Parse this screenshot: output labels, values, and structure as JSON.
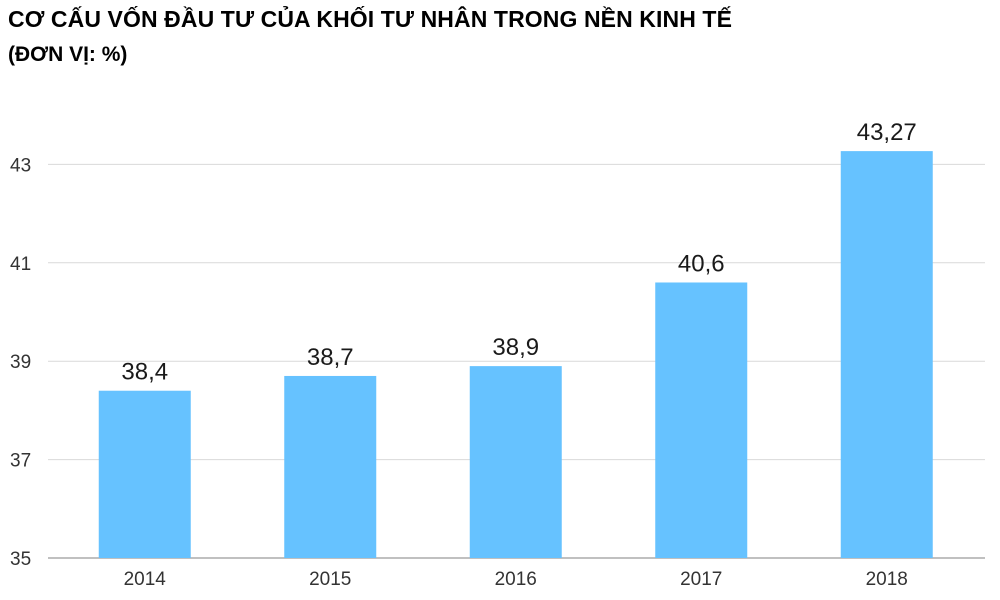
{
  "chart_data": {
    "type": "bar",
    "title": "CƠ CẤU VỐN ĐẦU TƯ CỦA KHỐI TƯ NHÂN TRONG NỀN KINH TẾ",
    "subtitle": "(ĐƠN VỊ: %)",
    "categories": [
      "2014",
      "2015",
      "2016",
      "2017",
      "2018"
    ],
    "values": [
      38.4,
      38.7,
      38.9,
      40.6,
      43.27
    ],
    "data_labels": [
      "38,4",
      "38,7",
      "38,9",
      "40,6",
      "43,27"
    ],
    "ylim": [
      35,
      44
    ],
    "yticks": [
      35,
      37,
      39,
      41,
      43
    ],
    "ytick_labels": [
      "35",
      "37",
      "39",
      "41",
      "43"
    ],
    "xlabel": "",
    "ylabel": "",
    "grid": true,
    "legend": "none",
    "bar_color": "#66c2ff",
    "grid_color": "#d9d9d9"
  }
}
